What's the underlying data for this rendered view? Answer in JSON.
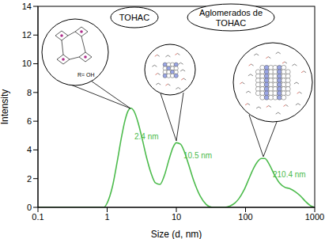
{
  "chart_data": {
    "type": "line",
    "xlabel": "Size (d, nm)",
    "ylabel": "Intensity",
    "color": "#4cbb4c",
    "log": "x",
    "grid": false,
    "xlim": [
      0.1,
      1000
    ],
    "ylim": [
      0,
      14
    ],
    "xticks": [
      0.1,
      1,
      10,
      100,
      1000
    ],
    "yticks": [
      0,
      2,
      4,
      6,
      8,
      10,
      12,
      14
    ],
    "x": [
      0.1,
      0.9,
      1,
      1.2,
      1.4,
      1.6,
      1.8,
      2,
      2.2,
      2.5,
      2.8,
      3.2,
      3.7,
      4.3,
      5,
      5.8,
      6.7,
      7.8,
      9,
      10,
      11.5,
      13,
      15,
      18,
      22,
      27,
      33,
      40,
      50,
      60,
      70,
      80,
      95,
      110,
      130,
      150,
      170,
      190,
      220,
      260,
      310,
      370,
      440,
      520,
      620,
      740,
      880,
      1000
    ],
    "values": [
      0,
      0,
      0.3,
      1.5,
      3.2,
      4.8,
      6.0,
      6.7,
      6.9,
      6.6,
      5.9,
      4.8,
      3.5,
      2.4,
      1.7,
      1.6,
      2.2,
      3.3,
      4.2,
      4.5,
      4.4,
      3.9,
      3.0,
      1.8,
      0.8,
      0.2,
      0,
      0,
      0,
      0.1,
      0.3,
      0.6,
      1.2,
      1.9,
      2.7,
      3.2,
      3.4,
      3.4,
      3.0,
      2.3,
      1.7,
      1.4,
      1.3,
      1.1,
      0.8,
      0.4,
      0.1,
      0
    ],
    "annotations": [
      "2.4 nm",
      "10.5 nm",
      "210.4 nm"
    ],
    "inset_labels": [
      "TOHAC",
      "Aglomerados de TOHAC"
    ],
    "inset_text": "R= OH"
  }
}
